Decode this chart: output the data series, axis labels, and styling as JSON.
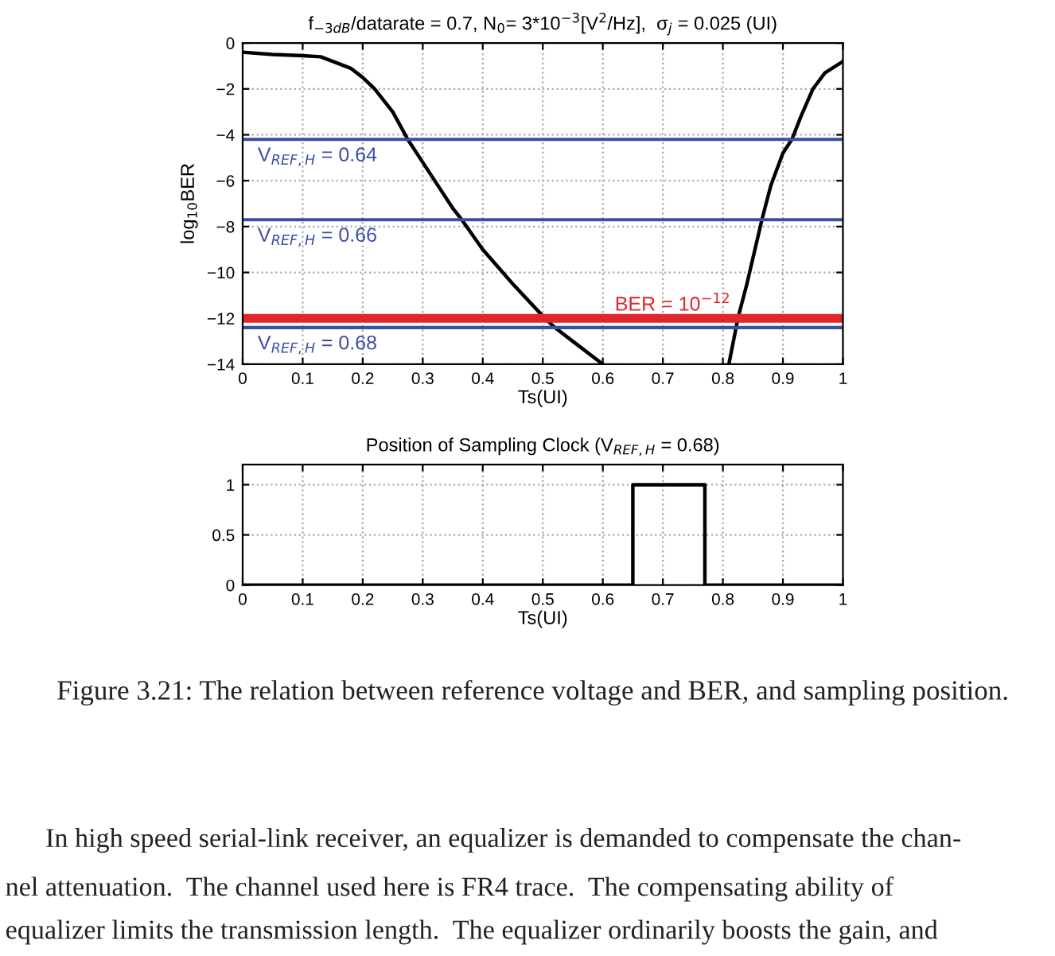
{
  "chart_data": [
    {
      "type": "line",
      "title": "f$_{−3dB}$/datarate = 0.7, N$_{0}$= 3*10$^{−3}$[V$^{2}$/Hz],  σ$_{j}$ = 0.025 (UI)",
      "xlabel": "Ts(UI)",
      "ylabel": "log$_{10}$BER",
      "x": [
        0,
        0.05,
        0.1,
        0.13,
        0.15,
        0.18,
        0.2,
        0.22,
        0.25,
        0.275,
        0.3,
        0.35,
        0.365,
        0.4,
        0.45,
        0.5,
        0.52,
        0.55,
        0.6,
        0.7,
        0.81,
        0.825,
        0.84,
        0.865,
        0.88,
        0.9,
        0.915,
        0.93,
        0.95,
        0.97,
        1.0
      ],
      "series": [
        {
          "color": "#000000",
          "values": [
            -0.4,
            -0.5,
            -0.55,
            -0.6,
            -0.8,
            -1.1,
            -1.5,
            -2.0,
            -3.0,
            -4.2,
            -5.2,
            -7.2,
            -7.7,
            -9.0,
            -10.5,
            -11.9,
            -12.4,
            -13.0,
            -14,
            null,
            -14,
            -12,
            -10.5,
            -7.7,
            -6.2,
            -4.8,
            -4.2,
            -3.2,
            -2.0,
            -1.3,
            -0.8
          ]
        }
      ],
      "xlim": [
        0,
        1
      ],
      "ylim": [
        -14,
        0
      ],
      "xticks": [
        0,
        0.1,
        0.2,
        0.3,
        0.4,
        0.5,
        0.6,
        0.7,
        0.8,
        0.9,
        1
      ],
      "yticks": [
        {
          "value": -14,
          "label": "−14"
        },
        {
          "value": -12,
          "label": "−12"
        },
        {
          "value": -10,
          "label": "−10"
        },
        {
          "value": -8,
          "label": "−8"
        },
        {
          "value": -6,
          "label": "−6"
        },
        {
          "value": -4,
          "label": "−4"
        },
        {
          "value": -2,
          "label": "−2"
        },
        0
      ],
      "ref_lines": [
        {
          "axis": "y",
          "value": -4.2,
          "color": "#3a4ea6"
        },
        {
          "axis": "y",
          "value": -7.7,
          "color": "#3a4ea6"
        },
        {
          "axis": "y",
          "value": -12,
          "label": "BER = 10$^{−12}$",
          "color": "#e0252d"
        },
        {
          "axis": "y",
          "value": -12.4,
          "color": "#3a4ea6"
        }
      ],
      "annotations": [
        {
          "text": "V$_{REF,H}$ = 0.64",
          "y": -4.2
        },
        {
          "text": "V$_{REF,H}$ = 0.66",
          "y": -7.7
        },
        {
          "text": "V$_{REF,H}$ = 0.68",
          "y": -12.4
        }
      ],
      "grid": true,
      "marker": "none",
      "line_style": "solid"
    },
    {
      "type": "line",
      "title": "Position of Sampling Clock (V$_{REF,H}$ = 0.68)",
      "xlabel": "Ts(UI)",
      "x": [
        0,
        0.65,
        0.65,
        0.77,
        0.77,
        1
      ],
      "series": [
        {
          "color": "#000000",
          "values": [
            0,
            0,
            1,
            1,
            0,
            0
          ]
        }
      ],
      "xlim": [
        0,
        1
      ],
      "ylim": [
        0,
        1.2
      ],
      "xticks": [
        0,
        0.1,
        0.2,
        0.3,
        0.4,
        0.5,
        0.6,
        0.7,
        0.8,
        0.9,
        1
      ],
      "yticks": [
        0,
        0.5,
        1
      ],
      "grid": true,
      "marker": "none",
      "line_style": "solid",
      "annotations": [
        "Figure 3.21: The relation between reference voltage and BER, and sampling position.",
        "In high speed serial-link receiver, an equalizer is demanded to compensate the chan-",
        "nel attenuation.  The channel used here is FR4 trace.  The compensating ability of",
        "equalizer limits the transmission length.  The equalizer ordinarily boosts the gain, and"
      ]
    }
  ]
}
